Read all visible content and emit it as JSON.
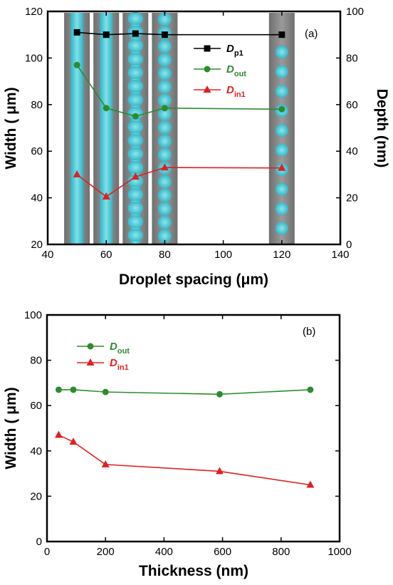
{
  "chart_data": [
    {
      "type": "line",
      "panel_label": "(a)",
      "xlabel": "Droplet spacing (μm)",
      "ylabel": "Width ( μm)",
      "y2label": "Depth (nm)",
      "xlim": [
        40,
        140
      ],
      "ylim": [
        20,
        120
      ],
      "y2lim": [
        0,
        100
      ],
      "xticks": [
        "40",
        "60",
        "80",
        "100",
        "120",
        "140"
      ],
      "yticks": [
        "20",
        "40",
        "60",
        "80",
        "100",
        "120"
      ],
      "y2ticks": [
        "0",
        "20",
        "40",
        "60",
        "80",
        "100"
      ],
      "x": [
        50,
        60,
        70,
        80,
        120
      ],
      "legend_position": "top-right",
      "series": [
        {
          "name": "D",
          "name_sub": "p1",
          "color": "#000000",
          "marker": "square",
          "axis": "left",
          "values": [
            111,
            110,
            110.5,
            110,
            110
          ]
        },
        {
          "name": "D",
          "name_sub": "out",
          "color": "#2e8b2e",
          "marker": "circle",
          "axis": "left",
          "values": [
            97,
            78.5,
            75,
            78.5,
            78
          ]
        },
        {
          "name": "D",
          "name_sub": "in1",
          "color": "#e02020",
          "marker": "triangle",
          "axis": "left",
          "values": [
            50,
            40.5,
            49,
            53,
            52.8
          ]
        }
      ],
      "background_images": [
        {
          "x_center": 50,
          "style": "continuous-line",
          "color": "#3fbfcc"
        },
        {
          "x_center": 60,
          "style": "continuous-line",
          "color": "#3fbfcc"
        },
        {
          "x_center": 70,
          "style": "bulged-line",
          "color": "#3fbfcc"
        },
        {
          "x_center": 80,
          "style": "touching-droplets",
          "color": "#3fbfcc"
        },
        {
          "x_center": 120,
          "style": "separate-droplets",
          "color": "#3fbfcc"
        }
      ]
    },
    {
      "type": "line",
      "panel_label": "(b)",
      "xlabel": "Thickness (nm)",
      "ylabel": "Width ( μm)",
      "xlim": [
        0,
        1000
      ],
      "ylim": [
        0,
        100
      ],
      "xticks": [
        "0",
        "200",
        "400",
        "600",
        "800",
        "1000"
      ],
      "yticks": [
        "0",
        "20",
        "40",
        "60",
        "80",
        "100"
      ],
      "x": [
        40,
        90,
        200,
        590,
        900
      ],
      "legend_position": "top-left",
      "series": [
        {
          "name": "D",
          "name_sub": "out",
          "color": "#2e8b2e",
          "marker": "circle",
          "values": [
            67,
            67,
            66,
            65,
            67
          ]
        },
        {
          "name": "D",
          "name_sub": "in1",
          "color": "#e02020",
          "marker": "triangle",
          "values": [
            47,
            44,
            34,
            31,
            25
          ]
        }
      ]
    }
  ]
}
